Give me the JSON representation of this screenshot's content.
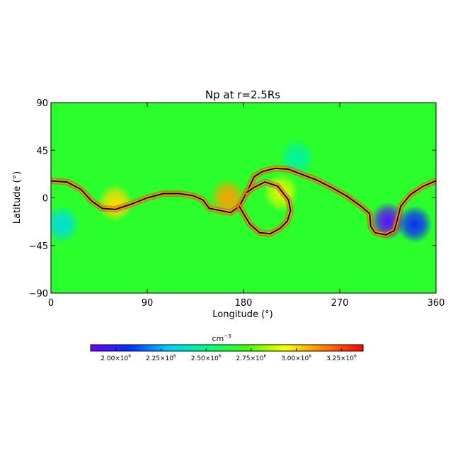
{
  "chart_data": {
    "type": "heatmap",
    "title": "Np at r=2.5Rs",
    "xlabel": "Longitude (°)",
    "ylabel": "Latitude (°)",
    "xlim": [
      0,
      360
    ],
    "ylim": [
      -90,
      90
    ],
    "x_ticks": [
      0,
      90,
      180,
      270,
      360
    ],
    "y_ticks": [
      -90,
      -45,
      0,
      45,
      90
    ],
    "x_tick_labels": [
      "0",
      "90",
      "180",
      "270",
      "360"
    ],
    "y_tick_labels": [
      "−90",
      "−45",
      "0",
      "45",
      "90"
    ],
    "colorbar": {
      "unit": "cm",
      "unit_exponent": "−3",
      "range": [
        1860000,
        3370000
      ],
      "ticks": [
        {
          "value": 2000000,
          "mantissa": "2.00×10",
          "exponent": "6"
        },
        {
          "value": 2250000,
          "mantissa": "2.25×10",
          "exponent": "6"
        },
        {
          "value": 2500000,
          "mantissa": "2.50×10",
          "exponent": "6"
        },
        {
          "value": 2750000,
          "mantissa": "2.75×10",
          "exponent": "6"
        },
        {
          "value": 3000000,
          "mantissa": "3.00×10",
          "exponent": "6"
        },
        {
          "value": 3250000,
          "mantissa": "3.25×10",
          "exponent": "6"
        }
      ],
      "colormap": [
        "#7000ff",
        "#0030ff",
        "#00d0ff",
        "#00ff80",
        "#40ff00",
        "#ffff00",
        "#ff8000",
        "#ff0000"
      ]
    },
    "background_value": 2650000,
    "features": [
      {
        "lon": 315,
        "lat": -22,
        "value": 1900000
      },
      {
        "lon": 340,
        "lat": -25,
        "value": 2050000
      },
      {
        "lon": 10,
        "lat": -25,
        "value": 2350000
      },
      {
        "lon": 230,
        "lat": 38,
        "value": 2450000
      },
      {
        "lon": 165,
        "lat": 0,
        "value": 3100000
      },
      {
        "lon": 60,
        "lat": -5,
        "value": 3000000
      },
      {
        "lon": 215,
        "lat": 5,
        "value": 2900000
      }
    ],
    "neutral_line": [
      [
        0,
        16
      ],
      [
        15,
        15
      ],
      [
        28,
        8
      ],
      [
        38,
        -3
      ],
      [
        48,
        -10
      ],
      [
        60,
        -11
      ],
      [
        75,
        -6
      ],
      [
        90,
        0
      ],
      [
        105,
        4
      ],
      [
        120,
        4
      ],
      [
        133,
        2
      ],
      [
        142,
        -2
      ],
      [
        148,
        -10
      ],
      [
        158,
        -12
      ],
      [
        168,
        -14
      ],
      [
        176,
        -8
      ],
      [
        183,
        5
      ],
      [
        190,
        20
      ],
      [
        198,
        25
      ],
      [
        210,
        28
      ],
      [
        222,
        27
      ],
      [
        235,
        22
      ],
      [
        248,
        17
      ],
      [
        262,
        10
      ],
      [
        276,
        2
      ],
      [
        290,
        -8
      ],
      [
        298,
        -15
      ],
      [
        299,
        -27
      ],
      [
        303,
        -33
      ],
      [
        313,
        -35
      ],
      [
        321,
        -31
      ],
      [
        324,
        -20
      ],
      [
        327,
        -8
      ],
      [
        336,
        3
      ],
      [
        348,
        11
      ],
      [
        360,
        16
      ]
    ],
    "neutral_line_loop": [
      [
        183,
        5
      ],
      [
        190,
        10
      ],
      [
        200,
        15
      ],
      [
        212,
        11
      ],
      [
        222,
        -2
      ],
      [
        224,
        -12
      ],
      [
        221,
        -22
      ],
      [
        214,
        -29
      ],
      [
        205,
        -34
      ],
      [
        195,
        -33
      ],
      [
        186,
        -25
      ],
      [
        180,
        -15
      ],
      [
        176,
        -8
      ]
    ]
  }
}
